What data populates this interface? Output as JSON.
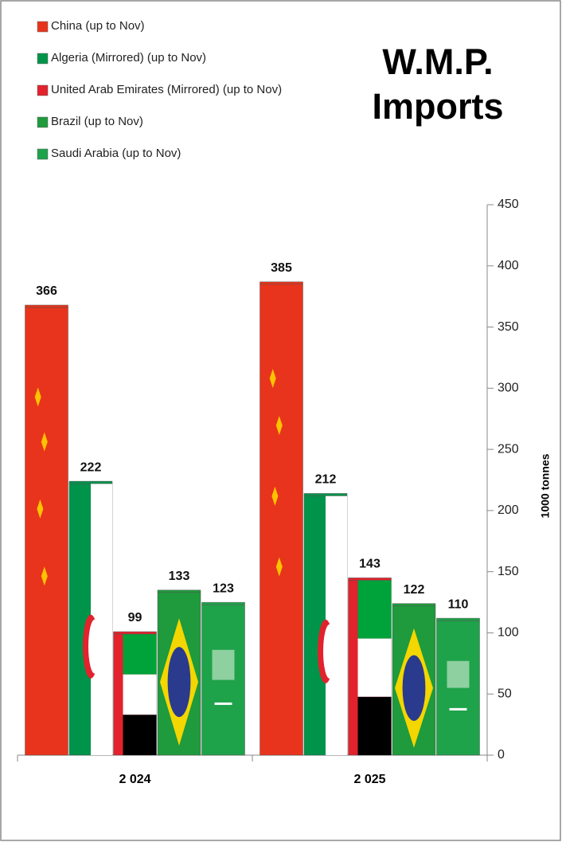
{
  "chart_data": {
    "type": "bar",
    "title": "W.M.P. Imports",
    "y_axis_label": "1000 tonnes",
    "categories": [
      "2 024",
      "2 025"
    ],
    "series": [
      {
        "name": "China (up to Nov)",
        "color": "#e8341c",
        "values": [
          366,
          385
        ]
      },
      {
        "name": "Algeria (Mirrored) (up to Nov)",
        "color": "#00934a",
        "values": [
          222,
          212
        ]
      },
      {
        "name": "United Arab Emirates (Mirrored) (up to Nov)",
        "color": "#e2222c",
        "values": [
          99,
          143
        ]
      },
      {
        "name": "Brazil (up to Nov)",
        "color": "#1f9a3c",
        "values": [
          133,
          122
        ]
      },
      {
        "name": "Saudi Arabia (up to Nov)",
        "color": "#1ea24a",
        "values": [
          123,
          110
        ]
      }
    ],
    "ylim": [
      0,
      450
    ],
    "yticks": [
      0,
      50,
      100,
      150,
      200,
      250,
      300,
      350,
      400,
      450
    ],
    "grid": false,
    "legend_position": "top-left"
  }
}
